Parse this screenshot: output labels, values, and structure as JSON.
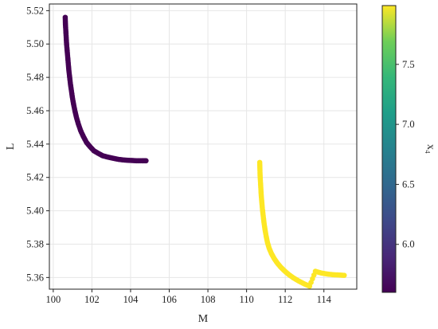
{
  "chart_data": {
    "type": "scatter",
    "title": "",
    "xlabel": "M",
    "ylabel": "L",
    "xlim": [
      99.8,
      115.7
    ],
    "ylim": [
      5.353,
      5.524
    ],
    "xticks": [
      100,
      102,
      104,
      106,
      108,
      110,
      112,
      114
    ],
    "yticks": [
      5.36,
      5.38,
      5.4,
      5.42,
      5.44,
      5.46,
      5.48,
      5.5,
      5.52
    ],
    "ytick_labels": [
      "5.36",
      "5.38",
      "5.40",
      "5.42",
      "5.44",
      "5.46",
      "5.48",
      "5.50",
      "5.52"
    ],
    "grid": true,
    "colorbar": {
      "label": "x₄",
      "colormap": "viridis",
      "range": [
        5.6,
        7.99
      ],
      "ticks": [
        6.0,
        6.5,
        7.0,
        7.5
      ],
      "tick_labels": [
        "6.0",
        "6.5",
        "7.0",
        "7.5"
      ],
      "position": "right"
    },
    "series": [
      {
        "color_value": 5.6,
        "color": "#440154",
        "points": [
          [
            100.62,
            5.516
          ],
          [
            100.63,
            5.512
          ],
          [
            100.65,
            5.508
          ],
          [
            100.67,
            5.504
          ],
          [
            100.69,
            5.5
          ],
          [
            100.72,
            5.496
          ],
          [
            100.75,
            5.492
          ],
          [
            100.78,
            5.488
          ],
          [
            100.81,
            5.484
          ],
          [
            100.85,
            5.48
          ],
          [
            100.89,
            5.476
          ],
          [
            100.94,
            5.472
          ],
          [
            100.99,
            5.468
          ],
          [
            101.05,
            5.464
          ],
          [
            101.12,
            5.46
          ],
          [
            101.2,
            5.456
          ],
          [
            101.3,
            5.452
          ],
          [
            101.42,
            5.448
          ],
          [
            101.56,
            5.4445
          ],
          [
            101.72,
            5.441
          ],
          [
            101.9,
            5.4385
          ],
          [
            102.1,
            5.436
          ],
          [
            102.32,
            5.4345
          ],
          [
            102.56,
            5.433
          ],
          [
            102.82,
            5.4322
          ],
          [
            103.1,
            5.4315
          ],
          [
            103.4,
            5.4308
          ],
          [
            103.7,
            5.4304
          ],
          [
            104.0,
            5.4302
          ],
          [
            104.3,
            5.43
          ],
          [
            104.6,
            5.43
          ],
          [
            104.8,
            5.43
          ]
        ]
      },
      {
        "color_value": 7.99,
        "color": "#fde725",
        "points": [
          [
            110.68,
            5.429
          ],
          [
            110.69,
            5.425
          ],
          [
            110.7,
            5.421
          ],
          [
            110.72,
            5.417
          ],
          [
            110.74,
            5.413
          ],
          [
            110.76,
            5.409
          ],
          [
            110.79,
            5.405
          ],
          [
            110.82,
            5.401
          ],
          [
            110.86,
            5.397
          ],
          [
            110.9,
            5.393
          ],
          [
            110.95,
            5.389
          ],
          [
            111.01,
            5.385
          ],
          [
            111.08,
            5.381
          ],
          [
            111.17,
            5.3775
          ],
          [
            111.28,
            5.3745
          ],
          [
            111.42,
            5.3715
          ],
          [
            111.58,
            5.3688
          ],
          [
            111.76,
            5.3663
          ],
          [
            111.96,
            5.364
          ],
          [
            112.18,
            5.3618
          ],
          [
            112.42,
            5.3598
          ],
          [
            112.68,
            5.358
          ],
          [
            112.96,
            5.3563
          ],
          [
            113.26,
            5.3548
          ],
          [
            113.56,
            5.3637
          ],
          [
            113.86,
            5.3627
          ],
          [
            114.16,
            5.3621
          ],
          [
            114.46,
            5.3617
          ],
          [
            114.76,
            5.3615
          ],
          [
            115.05,
            5.3613
          ]
        ]
      }
    ]
  }
}
